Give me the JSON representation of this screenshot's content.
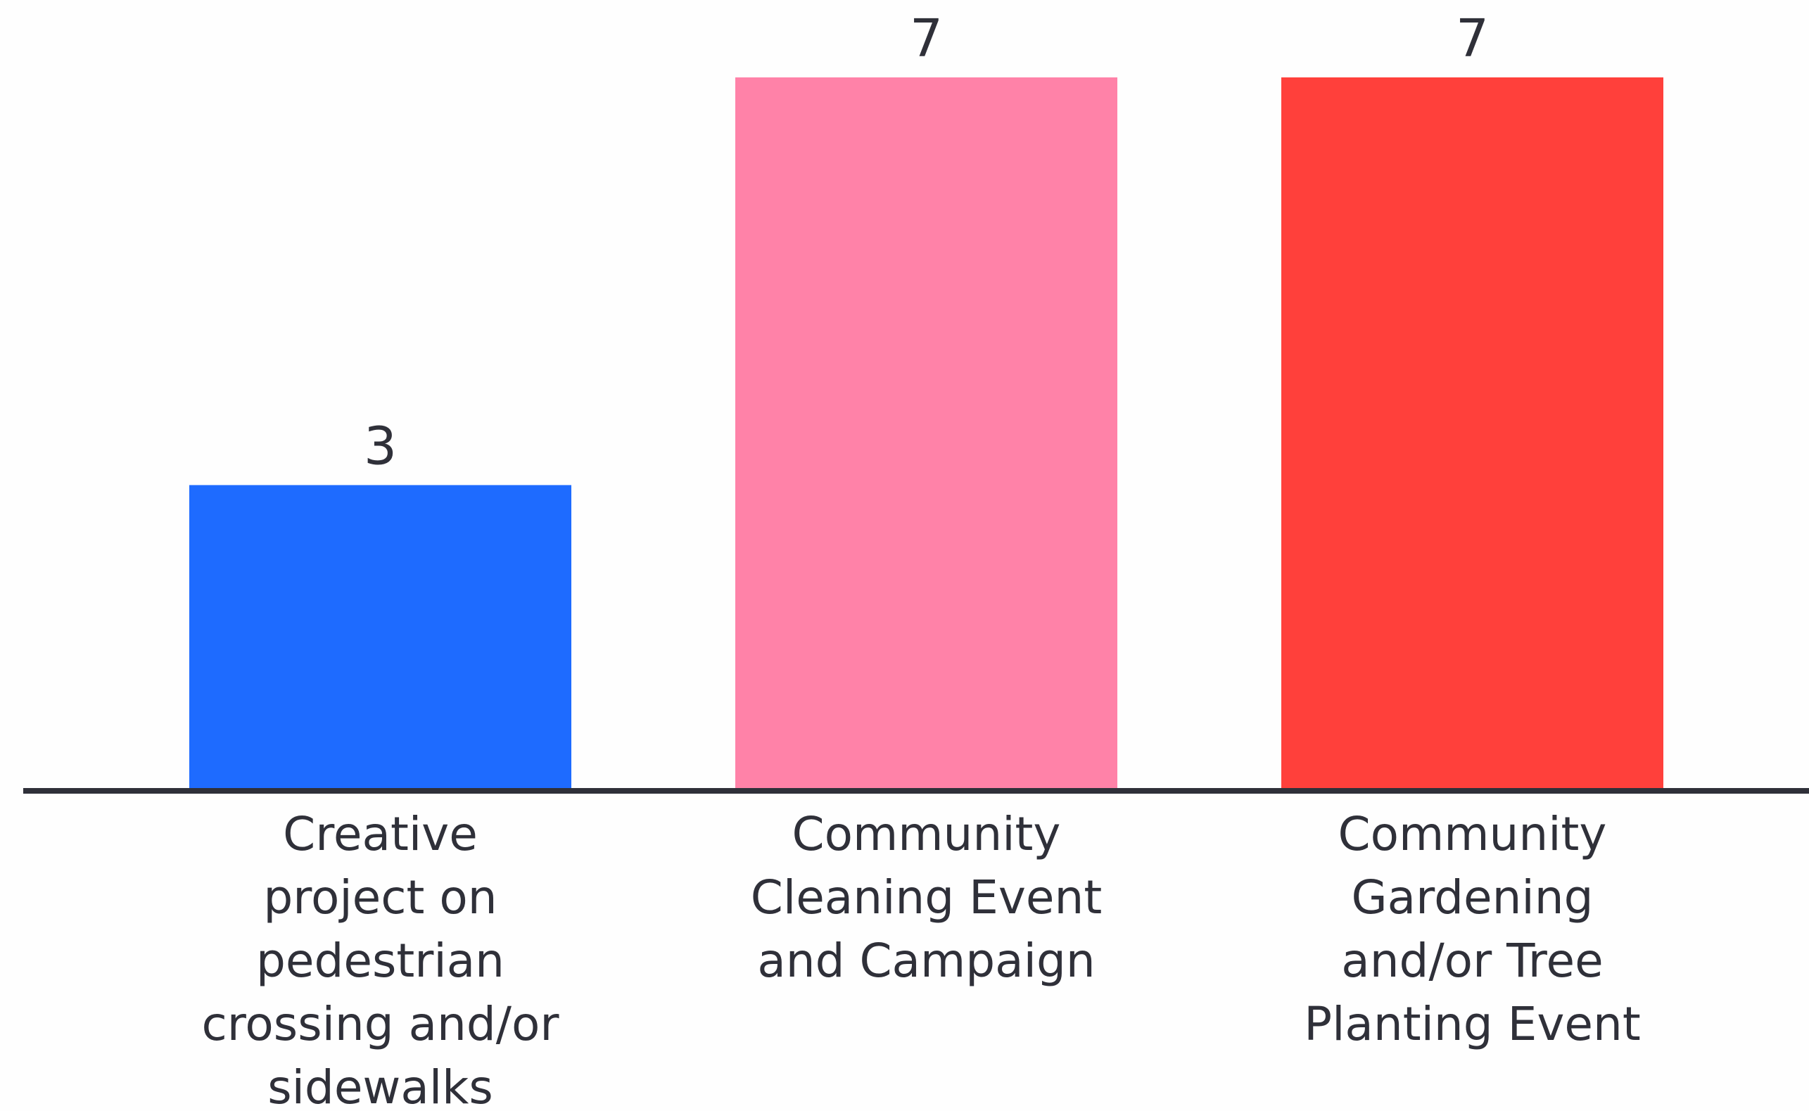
{
  "chart_data": {
    "type": "bar",
    "title": "",
    "xlabel": "",
    "ylabel": "",
    "ylim": [
      0,
      7
    ],
    "grid": false,
    "categories": [
      [
        "Creative",
        "project on",
        "pedestrian",
        "crossing and/or",
        "sidewalks"
      ],
      [
        "Community",
        "Cleaning Event",
        "and Campaign"
      ],
      [
        "Community",
        "Gardening",
        "and/or Tree",
        "Planting Event"
      ]
    ],
    "values": [
      3,
      7,
      7
    ],
    "colors": [
      "#1e6bff",
      "#ff82a8",
      "#ff403b"
    ],
    "axis_color": "#2f3039"
  }
}
